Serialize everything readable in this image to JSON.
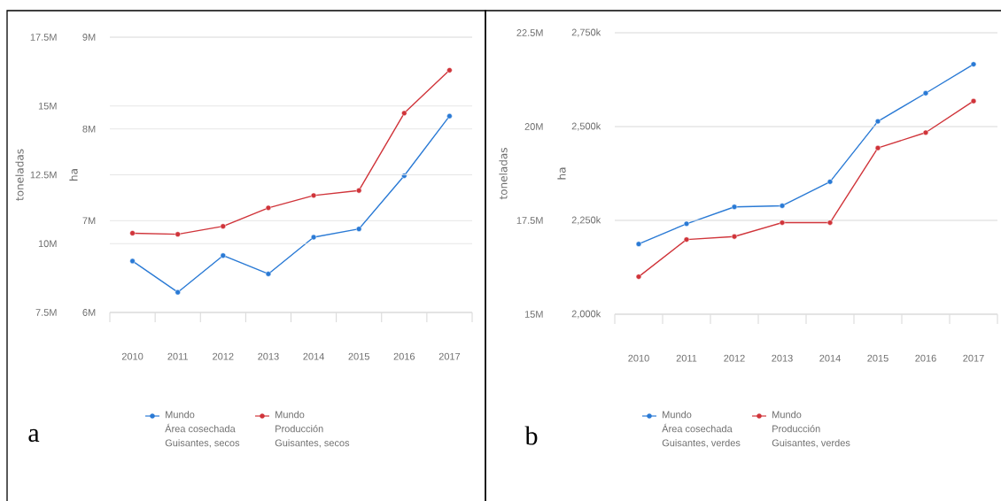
{
  "chart_data": [
    {
      "type": "line",
      "categories": [
        "2010",
        "2011",
        "2012",
        "2013",
        "2014",
        "2015",
        "2016",
        "2017"
      ],
      "series": [
        {
          "name": "Mundo\nÁrea cosechada\nGuisantes, secos",
          "color": "#2a7ad5",
          "axis": "y",
          "values": [
            6560000,
            6220000,
            6620000,
            6420000,
            6820000,
            6910000,
            7490000,
            8140000
          ]
        },
        {
          "name": "Mundo\nProducción\nGuisantes, secos",
          "color": "#d0343a",
          "axis": "y2",
          "values": [
            10380000,
            10340000,
            10630000,
            11300000,
            11750000,
            11930000,
            14740000,
            16300000
          ]
        }
      ],
      "ylabel": "ha",
      "y2label": "toneladas",
      "ylim": [
        6000000,
        9000000
      ],
      "yticks": [
        {
          "value": 6000000,
          "label": "6M"
        },
        {
          "value": 7000000,
          "label": "7M"
        },
        {
          "value": 8000000,
          "label": "8M"
        },
        {
          "value": 9000000,
          "label": "9M"
        }
      ],
      "y2lim": [
        7500000,
        17500000
      ],
      "y2ticks": [
        {
          "value": 7500000,
          "label": "7.5M"
        },
        {
          "value": 10000000,
          "label": "10M"
        },
        {
          "value": 12500000,
          "label": "12.5M"
        },
        {
          "value": 15000000,
          "label": "15M"
        },
        {
          "value": 17500000,
          "label": "17.5M"
        }
      ],
      "grid": "y",
      "legend": "bottom",
      "marker": "circle",
      "line_style": "solid",
      "annotations": [
        "a"
      ]
    },
    {
      "type": "line",
      "categories": [
        "2010",
        "2011",
        "2012",
        "2013",
        "2014",
        "2015",
        "2016",
        "2017"
      ],
      "series": [
        {
          "name": "Mundo\nÁrea cosechada\nGuisantes, verdes",
          "color": "#2a7ad5",
          "axis": "y",
          "values": [
            2187000,
            2241000,
            2286000,
            2289000,
            2353000,
            2514000,
            2589000,
            2666000
          ]
        },
        {
          "name": "Mundo\nProducción\nGuisantes, verdes",
          "color": "#d0343a",
          "axis": "y2",
          "values": [
            16000000,
            16990000,
            17070000,
            17440000,
            17440000,
            19430000,
            19840000,
            20680000
          ]
        }
      ],
      "ylabel": "ha",
      "y2label": "toneladas",
      "ylim": [
        2000000,
        2750000
      ],
      "yticks": [
        {
          "value": 2000000,
          "label": "2,000k"
        },
        {
          "value": 2250000,
          "label": "2,250k"
        },
        {
          "value": 2500000,
          "label": "2,500k"
        },
        {
          "value": 2750000,
          "label": "2,750k"
        }
      ],
      "y2lim": [
        15000000,
        22500000
      ],
      "y2ticks": [
        {
          "value": 15000000,
          "label": "15M"
        },
        {
          "value": 17500000,
          "label": "17.5M"
        },
        {
          "value": 20000000,
          "label": "20M"
        },
        {
          "value": 22500000,
          "label": "22.5M"
        }
      ],
      "grid": "y",
      "legend": "bottom",
      "marker": "circle",
      "line_style": "solid",
      "annotations": [
        "b"
      ]
    }
  ]
}
